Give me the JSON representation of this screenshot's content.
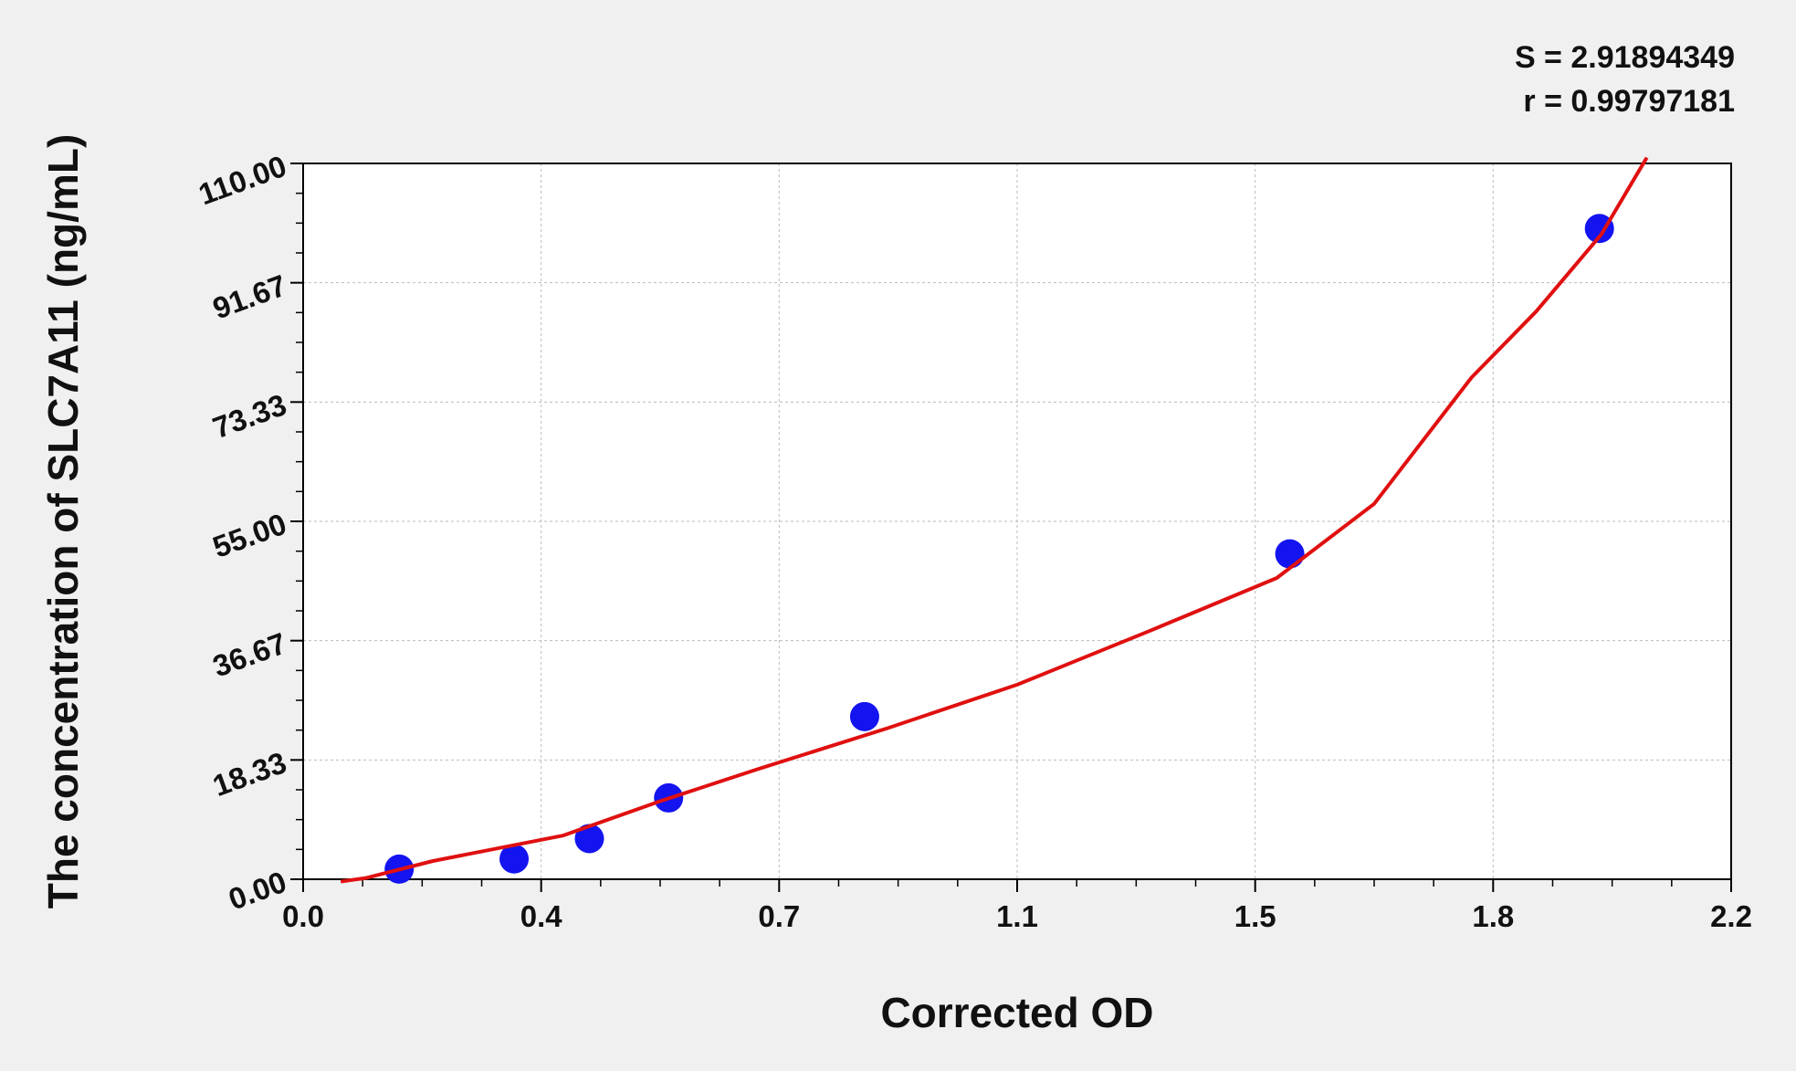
{
  "chart_data": {
    "type": "scatter",
    "x_label": "Corrected OD",
    "y_label": "The concentration of SLC7A11 (ng/mL)",
    "annotations": [
      "S = 2.91894349",
      "r = 0.99797181"
    ],
    "xlim": [
      0,
      2.2
    ],
    "xticks": [
      {
        "value": 0,
        "label": "0.0"
      },
      {
        "value": 0.3667,
        "label": "0.4"
      },
      {
        "value": 0.7333,
        "label": "0.7"
      },
      1.1,
      {
        "value": 1.4667,
        "label": "1.5"
      },
      {
        "value": 1.8333,
        "label": "1.8"
      },
      2.2
    ],
    "ylim": [
      0,
      110
    ],
    "yticks": [
      {
        "value": 0,
        "label": "0.00"
      },
      {
        "value": 18.3333,
        "label": "18.33"
      },
      {
        "value": 36.6667,
        "label": "36.67"
      },
      {
        "value": 55,
        "label": "55.00"
      },
      {
        "value": 73.3333,
        "label": "73.33"
      },
      {
        "value": 91.6667,
        "label": "91.67"
      },
      {
        "value": 110,
        "label": "110.00"
      }
    ],
    "grid": true,
    "series": [
      {
        "type": "scatter",
        "color": "#1414f0",
        "x": [
          0.148,
          0.325,
          0.441,
          0.563,
          0.865,
          1.52,
          1.997
        ],
        "values": [
          1.56,
          3.13,
          6.25,
          12.5,
          25,
          50,
          100
        ]
      },
      {
        "type": "line",
        "color": "#e01010",
        "x": [
          0.058,
          0.097,
          0.2,
          0.4,
          0.55,
          0.7,
          0.9,
          1.1,
          1.3,
          1.5,
          1.65,
          1.8,
          1.9,
          2.0,
          2.07
        ],
        "values": [
          -0.35,
          0.2,
          2.8,
          6.7,
          12.0,
          16.9,
          23.2,
          29.9,
          38.0,
          46.3,
          57.7,
          77.1,
          87.3,
          99.1,
          110.9
        ]
      }
    ]
  }
}
